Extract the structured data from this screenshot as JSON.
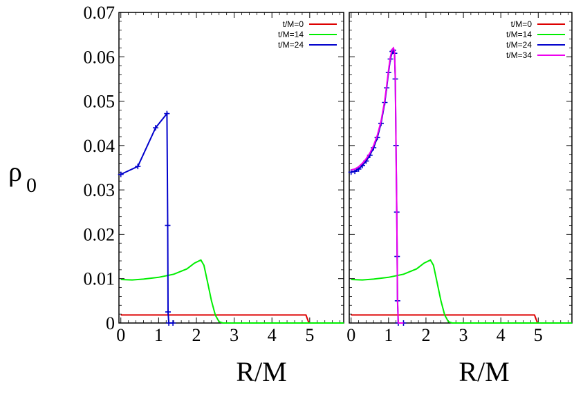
{
  "chart_data": {
    "type": "line",
    "ylabel": "ρ",
    "ylabel_sub": "0",
    "xlabel": "R/M",
    "ylim": [
      0,
      0.07
    ],
    "xlim": [
      -0.05,
      5.9
    ],
    "yticks": [
      "0",
      "0.01",
      "0.02",
      "0.03",
      "0.04",
      "0.05",
      "0.06",
      "0.07"
    ],
    "xticks": [
      "0",
      "1",
      "2",
      "3",
      "4",
      "5"
    ],
    "colors": {
      "t0": "#dd0000",
      "t14": "#00ee00",
      "t24": "#0000cc",
      "t34": "#ee00ee"
    },
    "legend_position": "top-right",
    "panels": [
      {
        "series": [
          {
            "name": "t/M=0",
            "key": "t0",
            "points": [
              [
                0,
                0.0018
              ],
              [
                4.9,
                0.0018
              ],
              [
                4.98,
                0.0
              ],
              [
                5.9,
                0.0
              ]
            ]
          },
          {
            "name": "t/M=14",
            "key": "t14",
            "points": [
              [
                0,
                0.0098
              ],
              [
                0.3,
                0.0097
              ],
              [
                0.6,
                0.0099
              ],
              [
                1.0,
                0.0103
              ],
              [
                1.4,
                0.011
              ],
              [
                1.75,
                0.0122
              ],
              [
                1.95,
                0.0135
              ],
              [
                2.12,
                0.0142
              ],
              [
                2.2,
                0.013
              ],
              [
                2.3,
                0.009
              ],
              [
                2.4,
                0.005
              ],
              [
                2.5,
                0.0018
              ],
              [
                2.6,
                0.0003
              ],
              [
                2.7,
                0.0
              ],
              [
                5.9,
                0.0
              ]
            ]
          },
          {
            "name": "t/M=24",
            "key": "t24",
            "markers": true,
            "points": [
              [
                0,
                0.0335
              ],
              [
                0.45,
                0.0353
              ],
              [
                0.92,
                0.044
              ],
              [
                1.22,
                0.0472
              ],
              [
                1.24,
                0.022
              ],
              [
                1.25,
                0.0025
              ],
              [
                1.27,
                0.0
              ],
              [
                1.38,
                0.0
              ]
            ]
          }
        ]
      },
      {
        "series": [
          {
            "name": "t/M=0",
            "key": "t0",
            "points": [
              [
                0,
                0.0018
              ],
              [
                4.9,
                0.0018
              ],
              [
                4.98,
                0.0
              ],
              [
                5.9,
                0.0
              ]
            ]
          },
          {
            "name": "t/M=14",
            "key": "t14",
            "points": [
              [
                0,
                0.0098
              ],
              [
                0.3,
                0.0097
              ],
              [
                0.6,
                0.0099
              ],
              [
                1.0,
                0.0103
              ],
              [
                1.4,
                0.011
              ],
              [
                1.75,
                0.0122
              ],
              [
                1.95,
                0.0135
              ],
              [
                2.12,
                0.0142
              ],
              [
                2.2,
                0.013
              ],
              [
                2.3,
                0.009
              ],
              [
                2.4,
                0.005
              ],
              [
                2.5,
                0.0018
              ],
              [
                2.6,
                0.0003
              ],
              [
                2.7,
                0.0
              ],
              [
                5.9,
                0.0
              ]
            ]
          },
          {
            "name": "t/M=24",
            "key": "t24",
            "markers": true,
            "points": [
              [
                0,
                0.034
              ],
              [
                0.1,
                0.0342
              ],
              [
                0.2,
                0.0347
              ],
              [
                0.3,
                0.0355
              ],
              [
                0.4,
                0.0365
              ],
              [
                0.5,
                0.0378
              ],
              [
                0.6,
                0.0395
              ],
              [
                0.7,
                0.0418
              ],
              [
                0.8,
                0.045
              ],
              [
                0.9,
                0.0497
              ],
              [
                0.95,
                0.053
              ],
              [
                1.0,
                0.0565
              ],
              [
                1.05,
                0.0595
              ],
              [
                1.1,
                0.0612
              ],
              [
                1.13,
                0.0615
              ],
              [
                1.16,
                0.0608
              ],
              [
                1.18,
                0.055
              ],
              [
                1.2,
                0.04
              ],
              [
                1.22,
                0.025
              ],
              [
                1.23,
                0.015
              ],
              [
                1.24,
                0.005
              ],
              [
                1.26,
                0.0
              ],
              [
                1.4,
                0.0
              ]
            ]
          },
          {
            "name": "t/M=34",
            "key": "t34",
            "points": [
              [
                0,
                0.0345
              ],
              [
                0.1,
                0.0347
              ],
              [
                0.2,
                0.0352
              ],
              [
                0.3,
                0.036
              ],
              [
                0.4,
                0.037
              ],
              [
                0.5,
                0.0383
              ],
              [
                0.6,
                0.04
              ],
              [
                0.7,
                0.0423
              ],
              [
                0.8,
                0.0455
              ],
              [
                0.9,
                0.0502
              ],
              [
                0.95,
                0.0535
              ],
              [
                1.0,
                0.057
              ],
              [
                1.05,
                0.06
              ],
              [
                1.1,
                0.0617
              ],
              [
                1.13,
                0.062
              ],
              [
                1.16,
                0.0612
              ],
              [
                1.18,
                0.0555
              ],
              [
                1.2,
                0.0405
              ],
              [
                1.22,
                0.0255
              ],
              [
                1.23,
                0.0155
              ],
              [
                1.24,
                0.0055
              ],
              [
                1.26,
                0.0
              ],
              [
                1.4,
                0.0
              ]
            ]
          }
        ]
      }
    ]
  }
}
